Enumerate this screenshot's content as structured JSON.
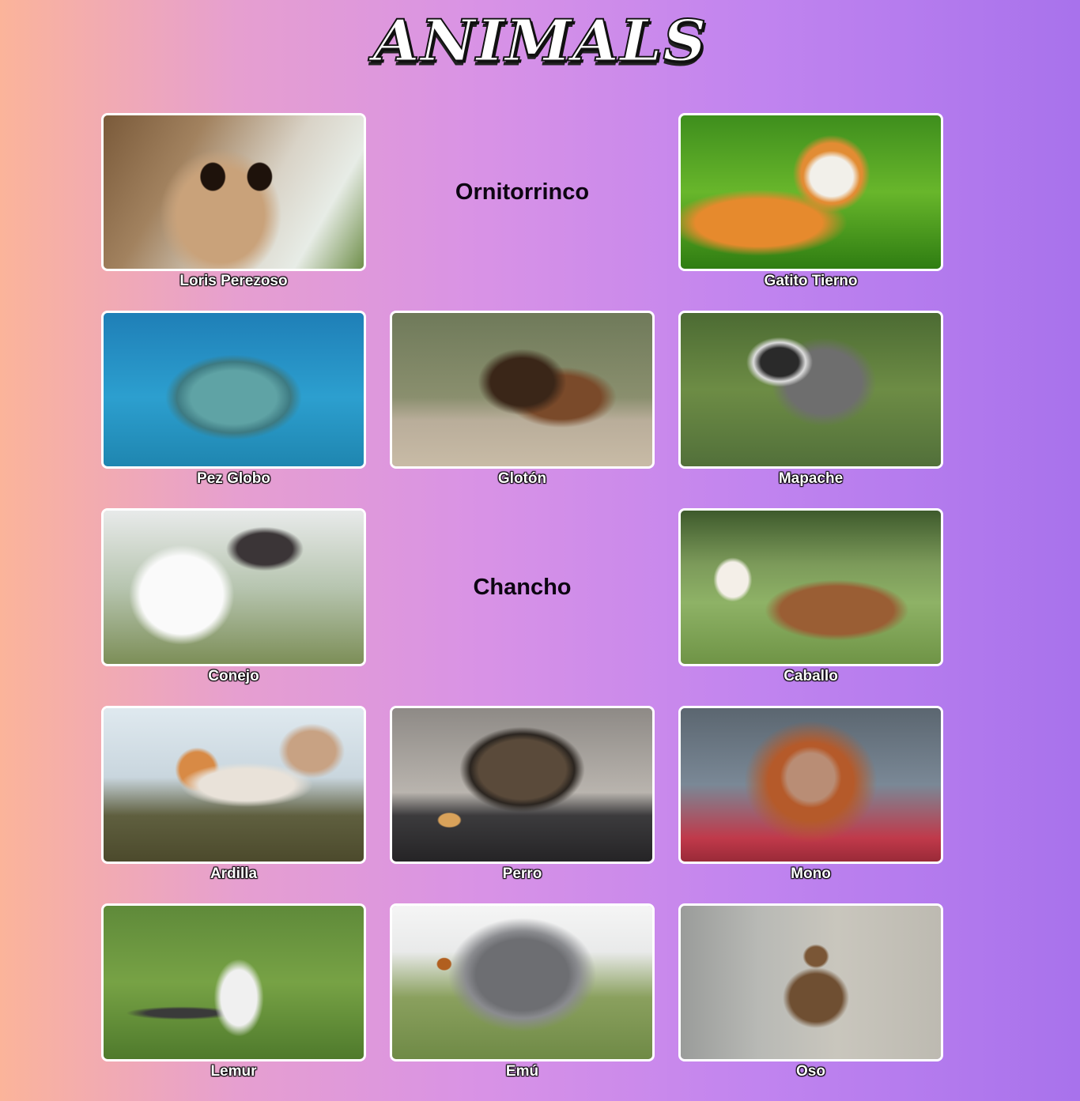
{
  "header": {
    "logo_text": "ANIMALS"
  },
  "gallery": {
    "cells": [
      {
        "type": "image",
        "caption": "Loris Perezoso",
        "photo": "loris"
      },
      {
        "type": "text",
        "text": "Ornitorrinco"
      },
      {
        "type": "image",
        "caption": "Gatito Tierno",
        "photo": "cat"
      },
      {
        "type": "image",
        "caption": "Pez Globo",
        "photo": "puffer"
      },
      {
        "type": "image",
        "caption": "Glotón",
        "photo": "glot"
      },
      {
        "type": "image",
        "caption": "Mapache",
        "photo": "racc"
      },
      {
        "type": "image",
        "caption": "Conejo",
        "photo": "bunny"
      },
      {
        "type": "text",
        "text": "Chancho"
      },
      {
        "type": "image",
        "caption": "Caballo",
        "photo": "horse"
      },
      {
        "type": "image",
        "caption": "Ardilla",
        "photo": "squir"
      },
      {
        "type": "image",
        "caption": "Perro",
        "photo": "pug"
      },
      {
        "type": "image",
        "caption": "Mono",
        "photo": "monkey"
      },
      {
        "type": "image",
        "caption": "Lemur",
        "photo": "lemur"
      },
      {
        "type": "image",
        "caption": "Emú",
        "photo": "emu"
      },
      {
        "type": "image",
        "caption": "Oso",
        "photo": "bear"
      }
    ]
  },
  "colors": {
    "gradient_start": "#fbb49a",
    "gradient_end": "#a872ec",
    "frame_border": "#ffffff",
    "caption_text": "#ffffff",
    "text_cell": "#0d0512"
  }
}
